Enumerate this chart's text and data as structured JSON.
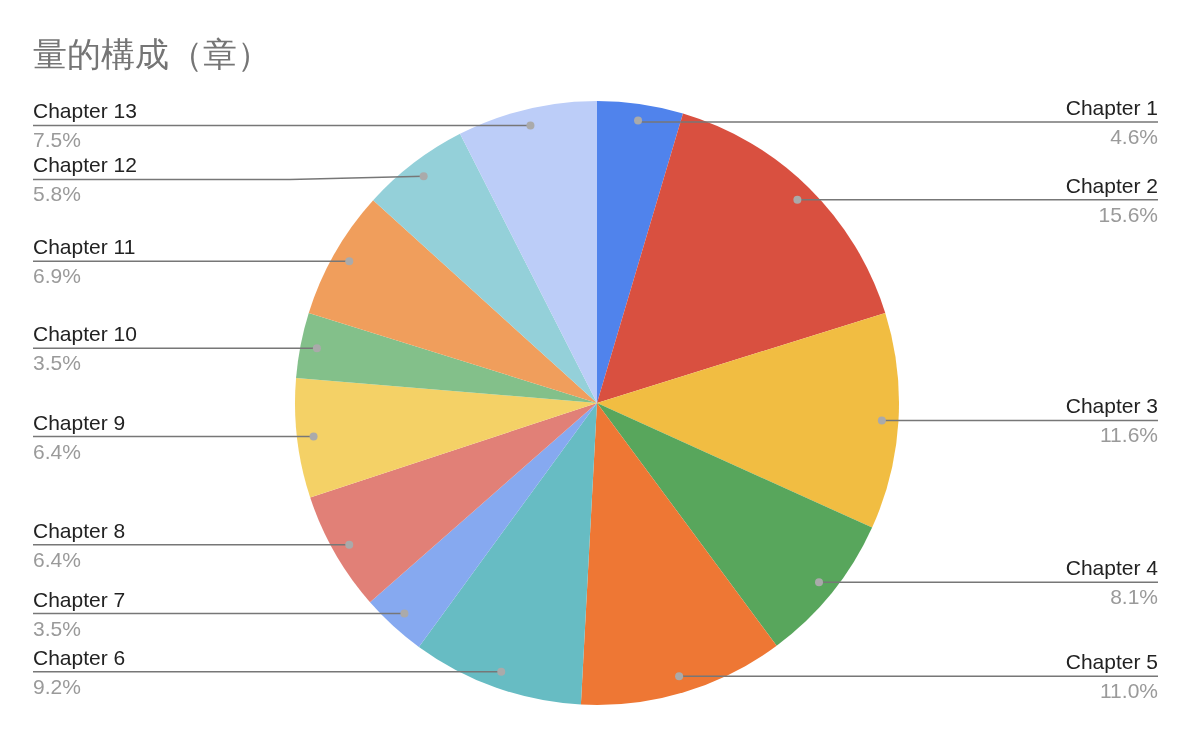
{
  "chart_data": {
    "type": "pie",
    "title": "量的構成（章）",
    "categories": [
      "Chapter 1",
      "Chapter 2",
      "Chapter 3",
      "Chapter 4",
      "Chapter 5",
      "Chapter 6",
      "Chapter 7",
      "Chapter 8",
      "Chapter 9",
      "Chapter 10",
      "Chapter 11",
      "Chapter 12",
      "Chapter 13"
    ],
    "values": [
      4.6,
      15.6,
      11.6,
      8.1,
      11.0,
      9.2,
      3.5,
      6.4,
      6.4,
      3.5,
      6.9,
      5.8,
      7.5
    ],
    "value_labels": [
      "4.6%",
      "15.6%",
      "11.6%",
      "8.1%",
      "11.0%",
      "9.2%",
      "3.5%",
      "6.4%",
      "6.4%",
      "3.5%",
      "6.9%",
      "5.8%",
      "7.5%"
    ],
    "colors": [
      "#5083ec",
      "#d95040",
      "#f1bd42",
      "#58a65c",
      "#ee7734",
      "#67bcc3",
      "#86a9f0",
      "#e18077",
      "#f4d166",
      "#83c08a",
      "#f09e5c",
      "#94d0d9",
      "#bccdf8"
    ]
  }
}
